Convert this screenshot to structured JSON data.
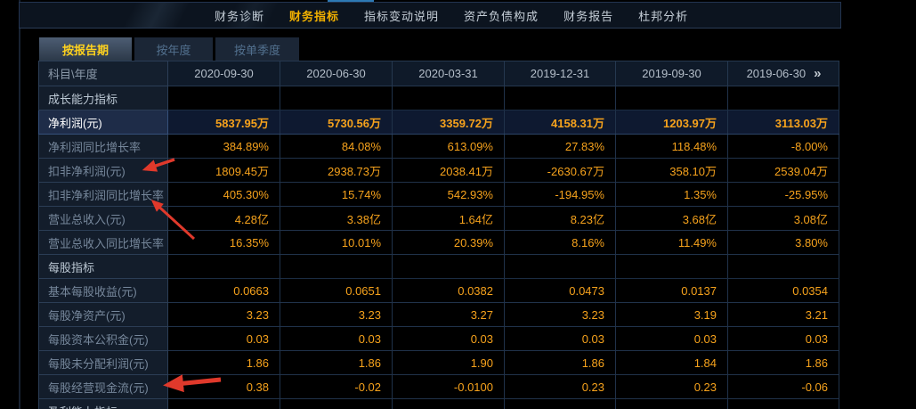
{
  "colors": {
    "accent_orange": "#f6a21c",
    "accent_gold": "#f2b100",
    "accent_yellow": "#ffd21e",
    "arrow_red": "#e0392b"
  },
  "nav": {
    "items": [
      {
        "label": "财务诊断",
        "active": false
      },
      {
        "label": "财务指标",
        "active": true
      },
      {
        "label": "指标变动说明",
        "active": false
      },
      {
        "label": "资产负债构成",
        "active": false
      },
      {
        "label": "财务报告",
        "active": false
      },
      {
        "label": "杜邦分析",
        "active": false
      }
    ]
  },
  "subtabs": {
    "items": [
      {
        "label": "按报告期",
        "active": true
      },
      {
        "label": "按年度",
        "active": false
      },
      {
        "label": "按单季度",
        "active": false
      }
    ]
  },
  "table": {
    "corner_label": "科目\\年度",
    "more_icon": "»",
    "columns": [
      "2020-09-30",
      "2020-06-30",
      "2020-03-31",
      "2019-12-31",
      "2019-09-30",
      "2019-06-30"
    ],
    "rows": [
      {
        "label": "成长能力指标",
        "kind": "section",
        "values": [
          "",
          "",
          "",
          "",
          "",
          ""
        ]
      },
      {
        "label": "净利润(元)",
        "kind": "data",
        "highlight": true,
        "values": [
          "5837.95万",
          "5730.56万",
          "3359.72万",
          "4158.31万",
          "1203.97万",
          "3113.03万"
        ]
      },
      {
        "label": "净利润同比增长率",
        "kind": "data",
        "values": [
          "384.89%",
          "84.08%",
          "613.09%",
          "27.83%",
          "118.48%",
          "-8.00%"
        ]
      },
      {
        "label": "扣非净利润(元)",
        "kind": "data",
        "values": [
          "1809.45万",
          "2938.73万",
          "2038.41万",
          "-2630.67万",
          "358.10万",
          "2539.04万"
        ]
      },
      {
        "label": "扣非净利润同比增长率",
        "kind": "data",
        "values": [
          "405.30%",
          "15.74%",
          "542.93%",
          "-194.95%",
          "1.35%",
          "-25.95%"
        ]
      },
      {
        "label": "营业总收入(元)",
        "kind": "data",
        "values": [
          "4.28亿",
          "3.38亿",
          "1.64亿",
          "8.23亿",
          "3.68亿",
          "3.08亿"
        ]
      },
      {
        "label": "营业总收入同比增长率",
        "kind": "data",
        "values": [
          "16.35%",
          "10.01%",
          "20.39%",
          "8.16%",
          "11.49%",
          "3.80%"
        ]
      },
      {
        "label": "每股指标",
        "kind": "section",
        "values": [
          "",
          "",
          "",
          "",
          "",
          ""
        ]
      },
      {
        "label": "基本每股收益(元)",
        "kind": "data",
        "values": [
          "0.0663",
          "0.0651",
          "0.0382",
          "0.0473",
          "0.0137",
          "0.0354"
        ]
      },
      {
        "label": "每股净资产(元)",
        "kind": "data",
        "values": [
          "3.23",
          "3.23",
          "3.27",
          "3.23",
          "3.19",
          "3.21"
        ]
      },
      {
        "label": "每股资本公积金(元)",
        "kind": "data",
        "values": [
          "0.03",
          "0.03",
          "0.03",
          "0.03",
          "0.03",
          "0.03"
        ]
      },
      {
        "label": "每股未分配利润(元)",
        "kind": "data",
        "values": [
          "1.86",
          "1.86",
          "1.90",
          "1.86",
          "1.84",
          "1.86"
        ]
      },
      {
        "label": "每股经营现金流(元)",
        "kind": "data",
        "values": [
          "0.38",
          "-0.02",
          "-0.0100",
          "0.23",
          "0.23",
          "-0.06"
        ]
      },
      {
        "label": "盈利能力指标",
        "kind": "section",
        "values": [
          "",
          "",
          "",
          "",
          "",
          ""
        ]
      }
    ]
  }
}
